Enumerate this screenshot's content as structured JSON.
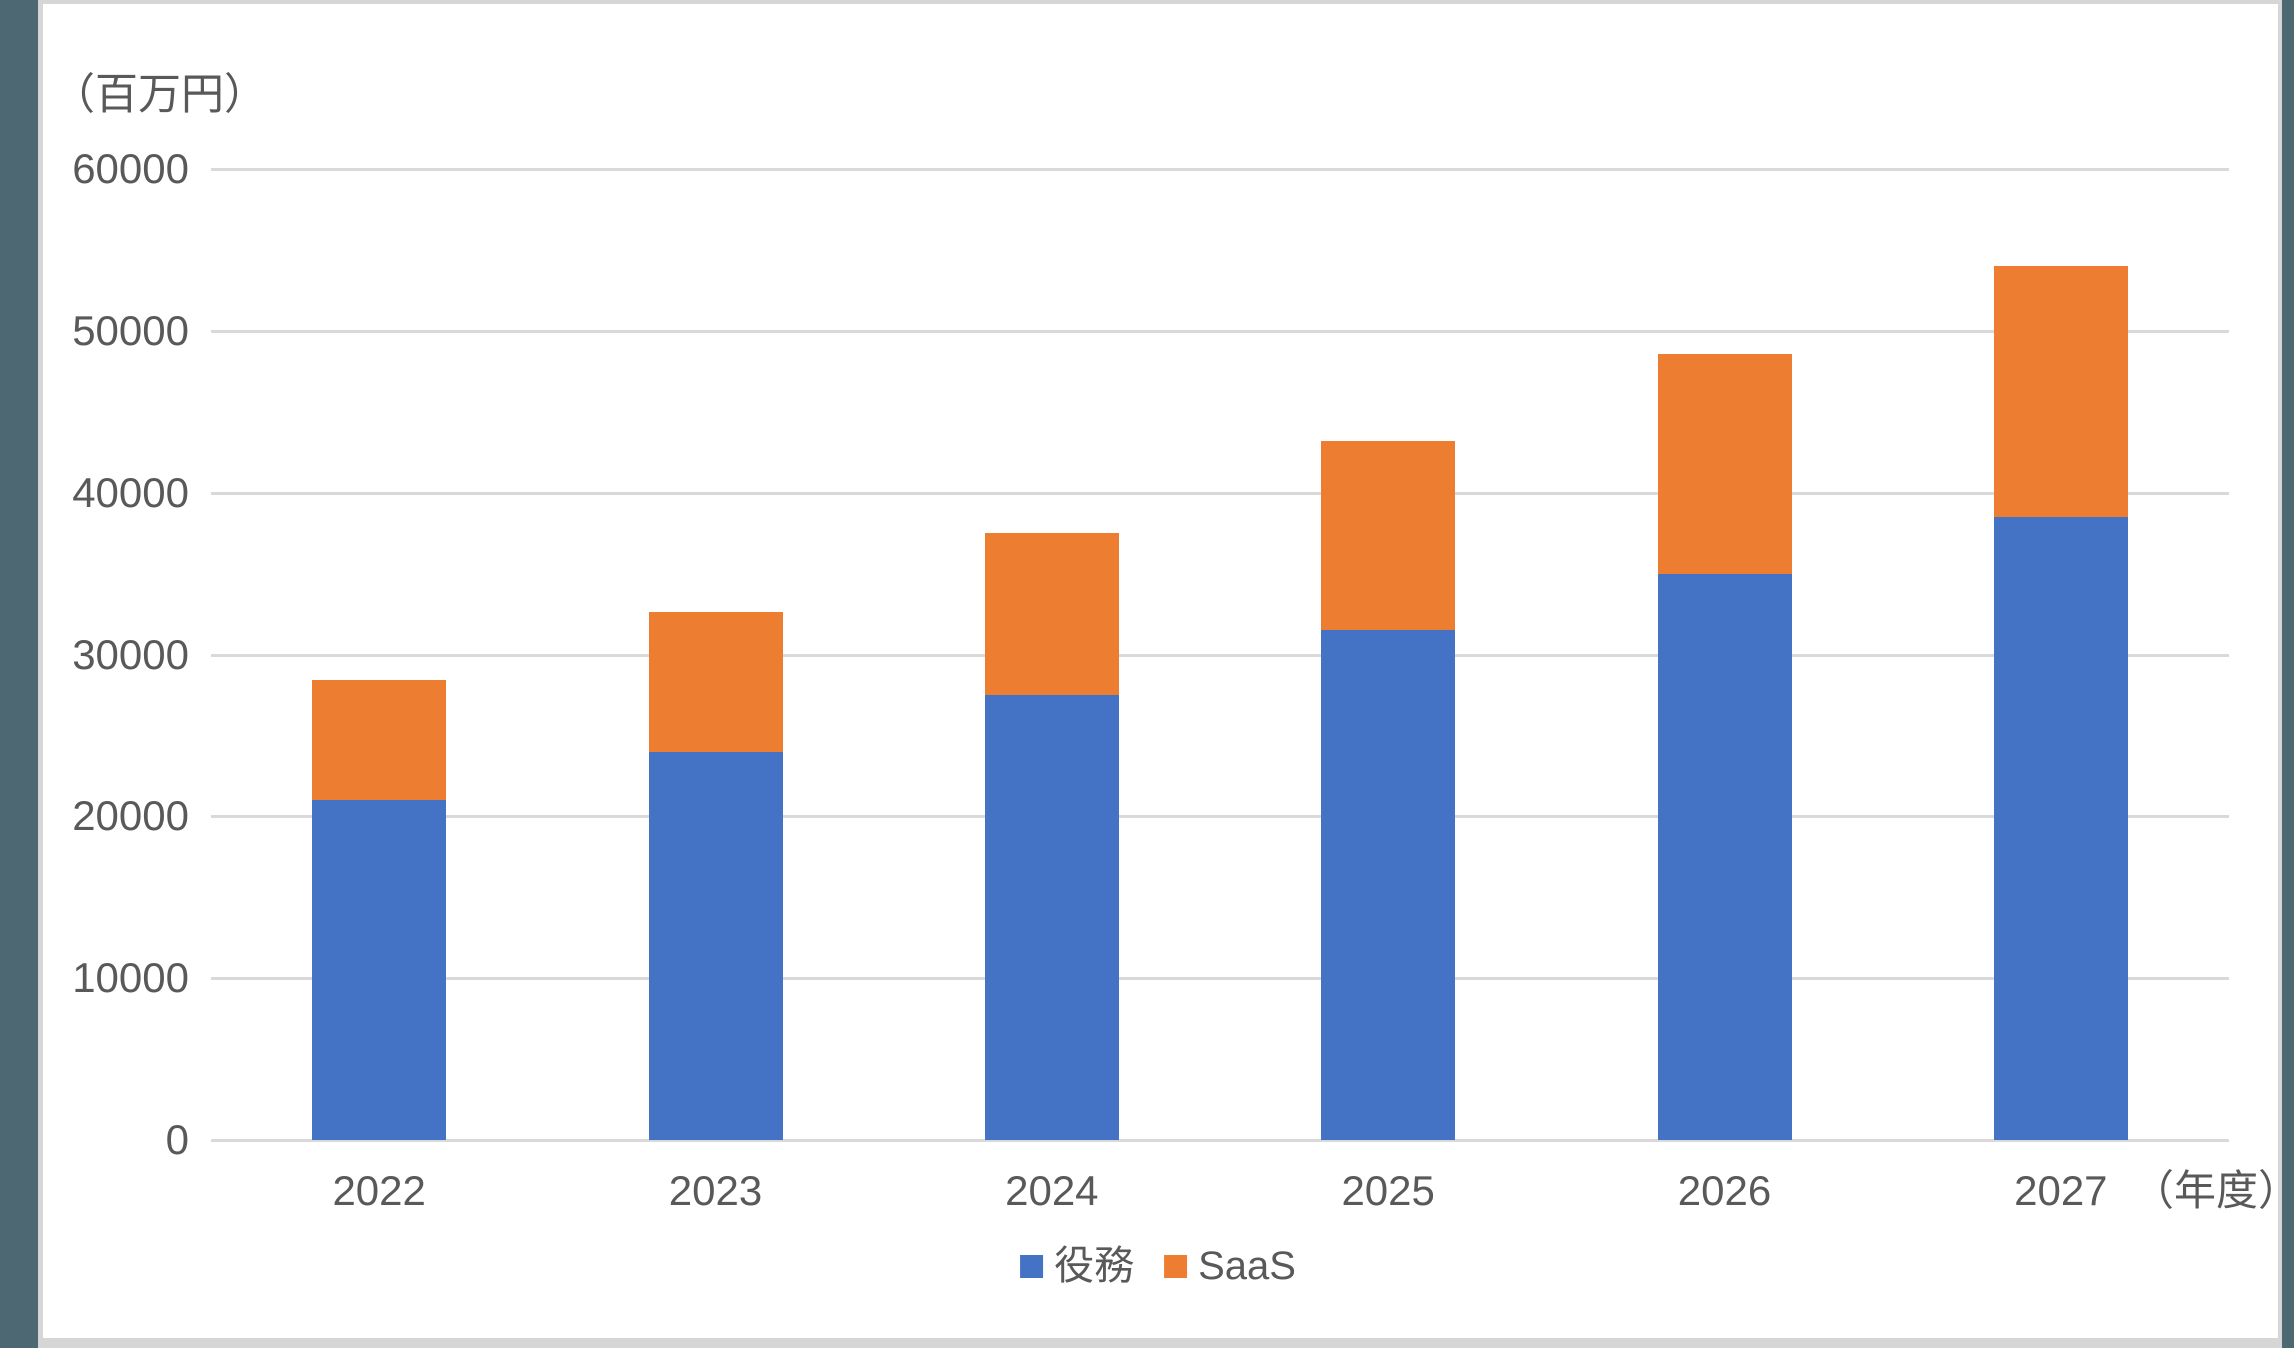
{
  "window": {
    "background_color": "#FFFFFF",
    "edge_strip_color": "#4D6872",
    "frame_border_color": "#D6D6D6"
  },
  "chart_data": {
    "type": "bar",
    "stacked": true,
    "unit_label": "（百万円）",
    "x_axis_suffix_label": "（年度）",
    "categories": [
      "2022",
      "2023",
      "2024",
      "2025",
      "2026",
      "2027"
    ],
    "series": [
      {
        "name": "役務",
        "color": "#4472C4",
        "values": [
          21000,
          24000,
          27500,
          31500,
          35000,
          38500
        ]
      },
      {
        "name": "SaaS",
        "color": "#ED7D31",
        "values": [
          7400,
          8600,
          10000,
          11700,
          13600,
          15500
        ]
      }
    ],
    "totals": [
      28400,
      32600,
      37500,
      43200,
      48600,
      54000
    ],
    "ylim": [
      0,
      60000
    ],
    "yticks": [
      0,
      10000,
      20000,
      30000,
      40000,
      50000,
      60000
    ],
    "grid": true,
    "gridline_color": "#D9D9D9",
    "text_color": "#595959",
    "legend_position": "bottom"
  }
}
